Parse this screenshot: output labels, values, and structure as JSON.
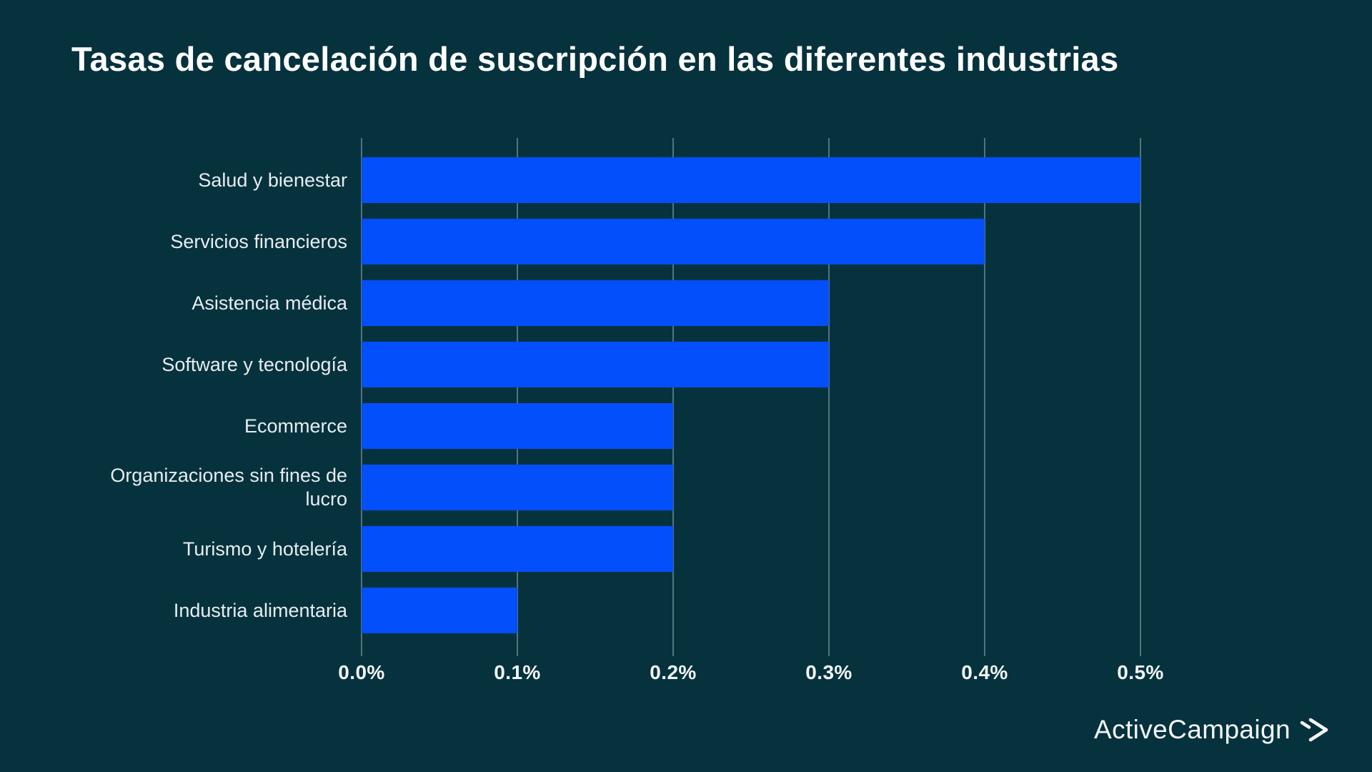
{
  "page": {
    "background_color": "#06323e"
  },
  "title": {
    "text": "Tasas de cancelación de suscripción en las diferentes industrias",
    "color": "#ffffff"
  },
  "logo": {
    "text": "ActiveCampaign",
    "mark": "double-chevron-right-icon",
    "color": "#f4f7f8"
  },
  "chart_data": {
    "type": "bar",
    "orientation": "horizontal",
    "title": "Tasas de cancelación de suscripción en las diferentes industrias",
    "categories": [
      "Salud y bienestar",
      "Servicios financieros",
      "Asistencia médica",
      "Software y tecnología",
      "Ecommerce",
      "Organizaciones sin fines de lucro",
      "Turismo y hotelería",
      "Industria alimentaria"
    ],
    "values": [
      0.5,
      0.4,
      0.3,
      0.3,
      0.2,
      0.2,
      0.2,
      0.1
    ],
    "value_unit": "%",
    "xlabel": "",
    "ylabel": "",
    "xlim": [
      0,
      0.5
    ],
    "x_ticks": [
      "0.0%",
      "0.1%",
      "0.2%",
      "0.3%",
      "0.4%",
      "0.5%"
    ],
    "grid": "vertical-gridlines-on",
    "legend": "none",
    "bar_color": "#044ffc",
    "gridline_color": "#5f8089",
    "label_color": "#e7edef",
    "tick_color": "#f2f6f7"
  }
}
